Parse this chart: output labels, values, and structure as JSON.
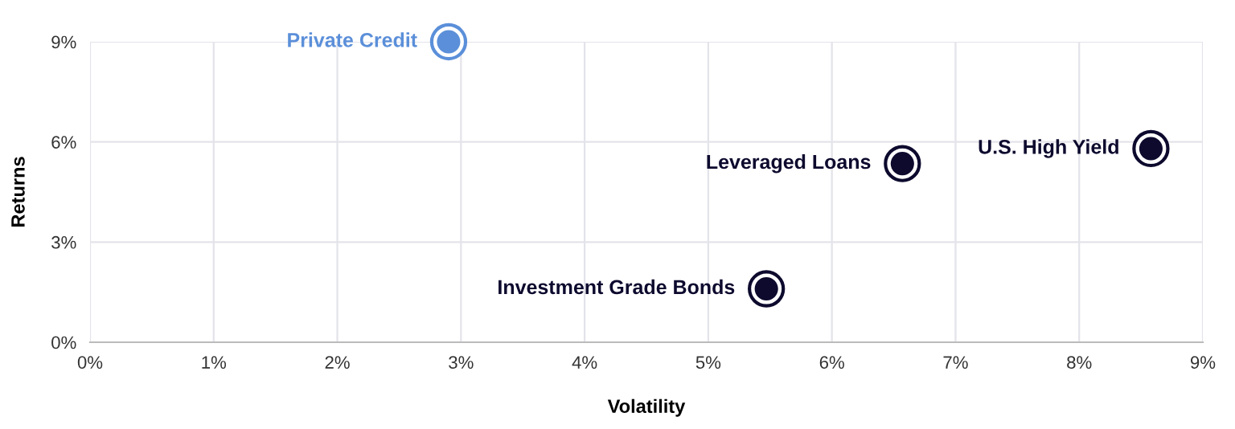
{
  "chart_data": {
    "type": "scatter",
    "xlabel": "Volatility",
    "ylabel": "Returns",
    "series": [
      {
        "name": "Private Credit",
        "color": "#5b8fd9",
        "x": [
          2.9
        ],
        "values": [
          9.0
        ]
      },
      {
        "name": "Leveraged Loans",
        "color": "#0d0a2e",
        "x": [
          6.57
        ],
        "values": [
          5.35
        ]
      },
      {
        "name": "U.S. High Yield",
        "color": "#0d0a2e",
        "x": [
          8.58
        ],
        "values": [
          5.8
        ]
      },
      {
        "name": "Investment Grade Bonds",
        "color": "#0d0a2e",
        "x": [
          5.47
        ],
        "values": [
          1.6
        ]
      }
    ],
    "xlim": [
      0,
      9
    ],
    "ylim": [
      0,
      9
    ],
    "xticks": [
      {
        "value": 0,
        "label": "0%"
      },
      {
        "value": 1,
        "label": "1%"
      },
      {
        "value": 2,
        "label": "2%"
      },
      {
        "value": 3,
        "label": "3%"
      },
      {
        "value": 4,
        "label": "4%"
      },
      {
        "value": 5,
        "label": "5%"
      },
      {
        "value": 6,
        "label": "6%"
      },
      {
        "value": 7,
        "label": "7%"
      },
      {
        "value": 8,
        "label": "8%"
      },
      {
        "value": 9,
        "label": "9%"
      }
    ],
    "yticks": [
      {
        "value": 0,
        "label": "0%"
      },
      {
        "value": 3,
        "label": "3%"
      },
      {
        "value": 6,
        "label": "6%"
      },
      {
        "value": 9,
        "label": "9%"
      }
    ],
    "grid": true,
    "marker": "circle",
    "legend": false
  }
}
